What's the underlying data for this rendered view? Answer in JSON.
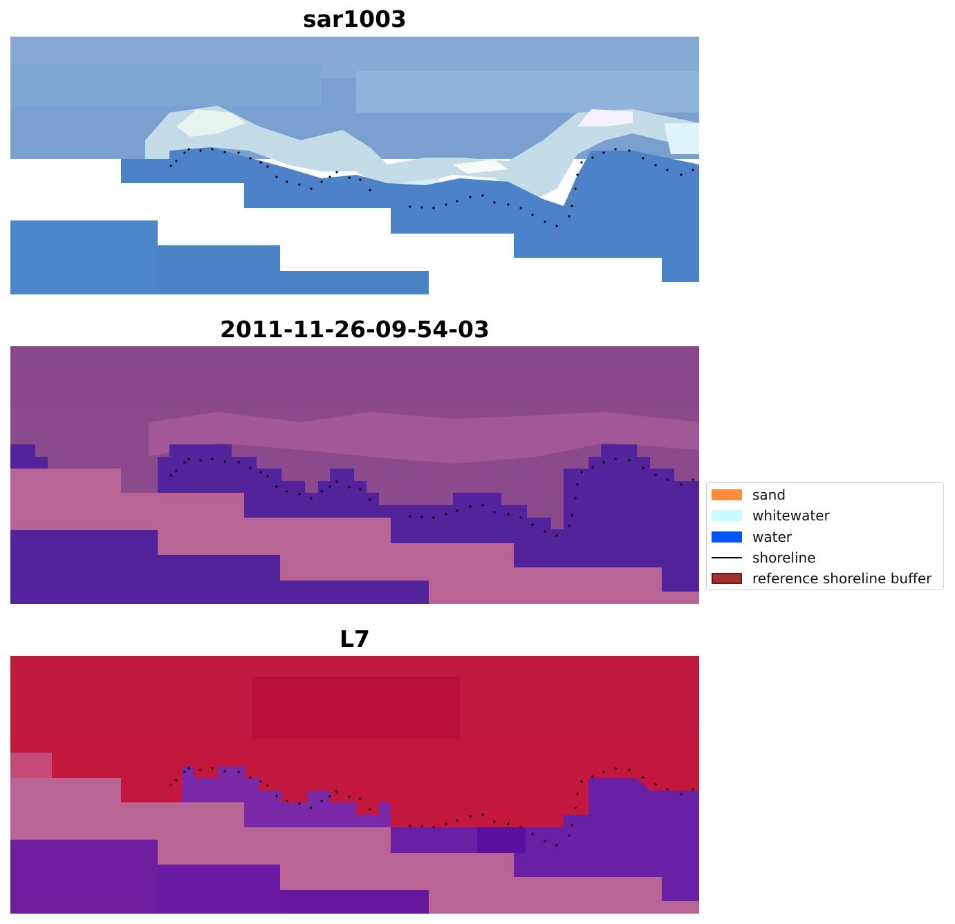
{
  "panels": [
    {
      "title": "sar1003"
    },
    {
      "title": "2011-11-26-09-54-03"
    },
    {
      "title": "L7"
    }
  ],
  "legend": {
    "items": [
      {
        "label": "sand",
        "color": "#ff8c3c",
        "type": "patch"
      },
      {
        "label": "whitewater",
        "color": "#c9fbff",
        "type": "patch"
      },
      {
        "label": "water",
        "color": "#0055ff",
        "type": "patch"
      },
      {
        "label": "shoreline",
        "color": "#000000",
        "type": "line"
      },
      {
        "label": "reference shoreline buffer",
        "color": "#a3302e",
        "type": "patch-border"
      }
    ]
  },
  "colors": {
    "panel1_land": "#6f95c9",
    "panel1_whitewater": "#e9f3f3",
    "panel1_water": "#4a7fc8",
    "panel2_land": "#8b4a8c",
    "panel2_water": "#52239b",
    "panel2_mask": "#b86494",
    "panel3_land": "#c4173e",
    "panel3_water": "#6a1f9f",
    "panel3_mask": "#b86494"
  }
}
